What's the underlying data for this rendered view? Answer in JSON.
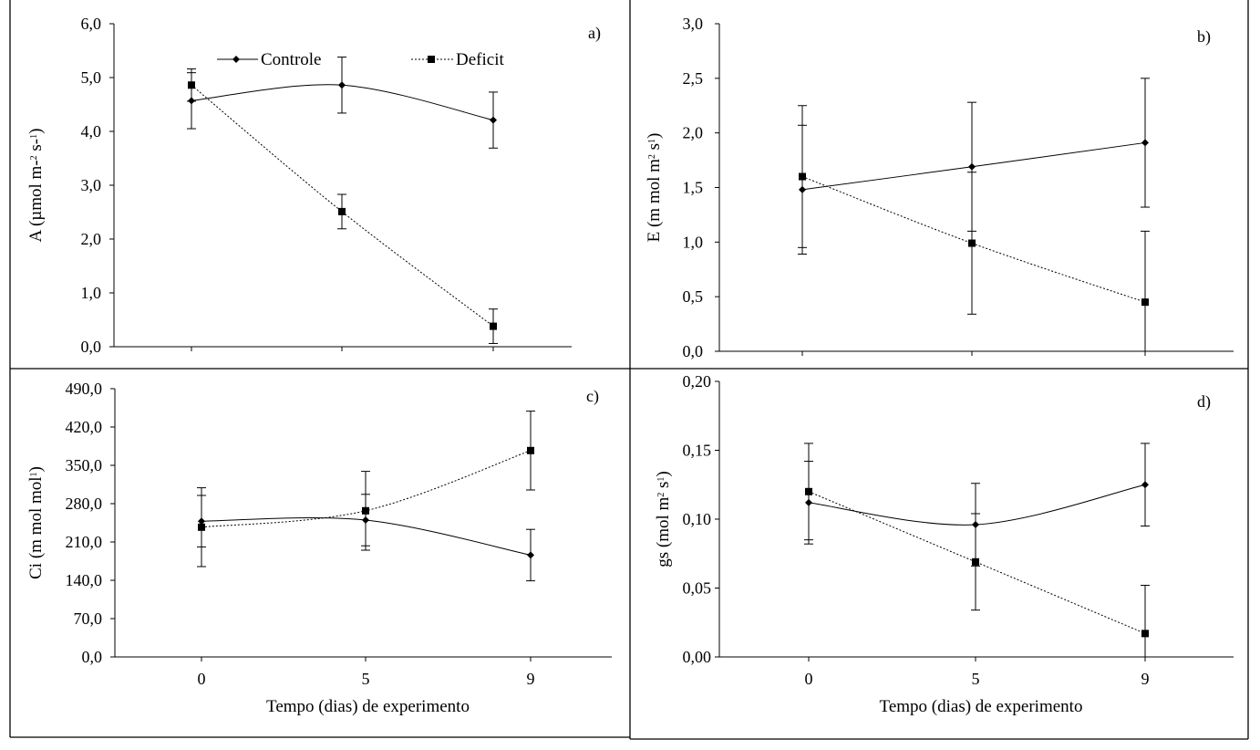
{
  "legend": {
    "controle": "Controle",
    "deficit": "Deficit"
  },
  "colors": {
    "line": "#000000",
    "background": "#ffffff"
  },
  "chart_data": [
    {
      "type": "line",
      "panel_label": "a)",
      "xlabel": "",
      "ylabel_html": "A (µmol m-<tspan baseline-shift='super' font-size='10'>2</tspan> s-<tspan baseline-shift='super' font-size='10'>1</tspan>)",
      "ylabel": "A (µmol m-2 s-1)",
      "categories": [
        "0",
        "5",
        "9"
      ],
      "show_x_ticklabels": false,
      "ylim": [
        0,
        6
      ],
      "yticks": [
        "0,0",
        "1,0",
        "2,0",
        "3,0",
        "4,0",
        "5,0",
        "6,0"
      ],
      "series": [
        {
          "name": "Controle",
          "marker": "diamond",
          "dash": "solid",
          "values": [
            4.57,
            4.86,
            4.21
          ],
          "errors": [
            0.52,
            0.52,
            0.52
          ]
        },
        {
          "name": "Deficit",
          "marker": "square",
          "dash": "dotted",
          "values": [
            4.86,
            2.51,
            0.38
          ],
          "errors": [
            0.3,
            0.32,
            0.32
          ]
        }
      ]
    },
    {
      "type": "line",
      "panel_label": "b)",
      "xlabel": "",
      "ylabel_html": "E (m mol m<tspan baseline-shift='super' font-size='10'>2</tspan> s<tspan baseline-shift='super' font-size='10'>1</tspan>)",
      "ylabel": "E (m mol m2 s1)",
      "categories": [
        "0",
        "5",
        "9"
      ],
      "show_x_ticklabels": false,
      "ylim": [
        0,
        3
      ],
      "yticks": [
        "0,0",
        "0,5",
        "1,0",
        "1,5",
        "2,0",
        "2,5",
        "3,0"
      ],
      "series": [
        {
          "name": "Controle",
          "marker": "diamond",
          "dash": "solid",
          "values": [
            1.48,
            1.69,
            1.91
          ],
          "errors": [
            0.59,
            0.59,
            0.59
          ]
        },
        {
          "name": "Deficit",
          "marker": "square",
          "dash": "dotted",
          "values": [
            1.6,
            0.99,
            0.45
          ],
          "errors": [
            0.65,
            0.65,
            0.65
          ]
        }
      ]
    },
    {
      "type": "line",
      "panel_label": "c)",
      "xlabel": "Tempo (dias) de experimento",
      "ylabel_html": "Ci (m mol mol<tspan baseline-shift='super' font-size='10'>1</tspan>)",
      "ylabel": "Ci (m mol mol1)",
      "categories": [
        "0",
        "5",
        "9"
      ],
      "show_x_ticklabels": true,
      "ylim": [
        0,
        490
      ],
      "yticks": [
        "0,0",
        "70,0",
        "140,0",
        "210,0",
        "280,0",
        "350,0",
        "420,0",
        "490,0"
      ],
      "series": [
        {
          "name": "Controle",
          "marker": "diamond",
          "dash": "solid",
          "values": [
            248,
            250,
            186
          ],
          "errors": [
            47,
            47,
            47
          ]
        },
        {
          "name": "Deficit",
          "marker": "square",
          "dash": "dotted",
          "values": [
            237,
            267,
            377
          ],
          "errors": [
            72,
            72,
            72
          ]
        }
      ]
    },
    {
      "type": "line",
      "panel_label": "d)",
      "xlabel": "Tempo (dias) de experimento",
      "ylabel_html": "gs (mol m<tspan baseline-shift='super' font-size='10'>2</tspan> s<tspan baseline-shift='super' font-size='10'>1</tspan>)",
      "ylabel": "gs (mol m2 s1)",
      "categories": [
        "0",
        "5",
        "9"
      ],
      "show_x_ticklabels": true,
      "ylim": [
        0,
        0.2
      ],
      "yticks": [
        "0,00",
        "0,05",
        "0,10",
        "0,15",
        "0,20"
      ],
      "series": [
        {
          "name": "Controle",
          "marker": "diamond",
          "dash": "solid",
          "values": [
            0.112,
            0.096,
            0.125
          ],
          "errors": [
            0.03,
            0.03,
            0.03
          ]
        },
        {
          "name": "Deficit",
          "marker": "square",
          "dash": "dotted",
          "values": [
            0.12,
            0.069,
            0.017
          ],
          "errors": [
            0.035,
            0.035,
            0.035
          ]
        }
      ]
    }
  ]
}
